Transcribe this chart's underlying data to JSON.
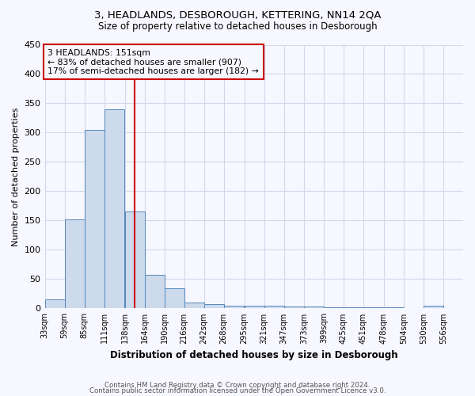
{
  "title1": "3, HEADLANDS, DESBOROUGH, KETTERING, NN14 2QA",
  "title2": "Size of property relative to detached houses in Desborough",
  "xlabel": "Distribution of detached houses by size in Desborough",
  "ylabel": "Number of detached properties",
  "footer1": "Contains HM Land Registry data © Crown copyright and database right 2024.",
  "footer2": "Contains public sector information licensed under the Open Government Licence v3.0.",
  "annotation_line1": "3 HEADLANDS: 151sqm",
  "annotation_line2": "← 83% of detached houses are smaller (907)",
  "annotation_line3": "17% of semi-detached houses are larger (182) →",
  "bar_edges": [
    33,
    59,
    85,
    111,
    138,
    164,
    190,
    216,
    242,
    268,
    295,
    321,
    347,
    373,
    399,
    425,
    451,
    478,
    504,
    530,
    556
  ],
  "bar_heights": [
    15,
    152,
    305,
    340,
    165,
    57,
    35,
    10,
    7,
    5,
    4,
    4,
    3,
    3,
    2,
    2,
    2,
    2,
    0,
    4,
    0
  ],
  "bar_color": "#ccdaeb",
  "bar_edge_color": "#5588bb",
  "red_line_x": 151,
  "red_line_color": "#cc0000",
  "annotation_box_color": "#cc0000",
  "grid_color": "#d0d8ea",
  "bg_color": "#f7f7ff",
  "ylim": [
    0,
    450
  ],
  "xlim": [
    33,
    582
  ]
}
